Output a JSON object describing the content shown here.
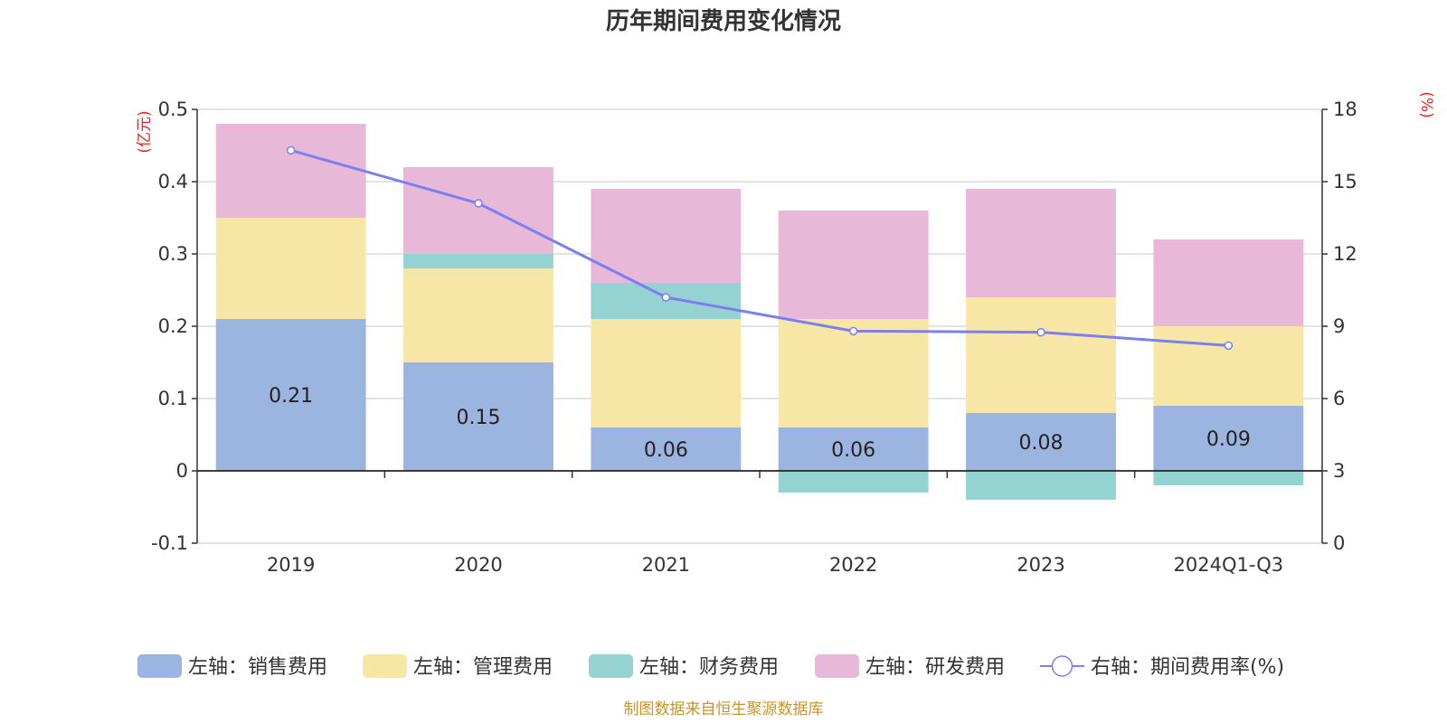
{
  "chart_data": {
    "type": "bar",
    "stacked": true,
    "title": "历年期间费用变化情况",
    "left_axis_unit": "(亿元)",
    "right_axis_unit": "(%)",
    "categories": [
      "2019",
      "2020",
      "2021",
      "2022",
      "2023",
      "2024Q1-Q3"
    ],
    "ylim_left": [
      -0.1,
      0.5
    ],
    "yticks_left": [
      "-0.1",
      "0",
      "0.1",
      "0.2",
      "0.3",
      "0.4",
      "0.5"
    ],
    "ylim_right": [
      0,
      18
    ],
    "yticks_right": [
      "0",
      "3",
      "6",
      "9",
      "12",
      "15",
      "18"
    ],
    "grid": true,
    "legend_position": "bottom",
    "series": [
      {
        "name": "左轴：销售费用",
        "axis": "left",
        "type": "bar",
        "color": "#9bb5e0",
        "values": [
          0.21,
          0.15,
          0.06,
          0.06,
          0.08,
          0.09
        ],
        "labels": [
          "0.21",
          "0.15",
          "0.06",
          "0.06",
          "0.08",
          "0.09"
        ]
      },
      {
        "name": "左轴：管理费用",
        "axis": "left",
        "type": "bar",
        "color": "#f7e6a6",
        "values": [
          0.14,
          0.13,
          0.15,
          0.15,
          0.16,
          0.11
        ]
      },
      {
        "name": "左轴：财务费用",
        "axis": "left",
        "type": "bar",
        "color": "#95d3d3",
        "values": [
          0.0,
          0.02,
          0.05,
          -0.03,
          -0.04,
          -0.02
        ]
      },
      {
        "name": "左轴：研发费用",
        "axis": "left",
        "type": "bar",
        "color": "#e8b8d9",
        "values": [
          0.13,
          0.12,
          0.13,
          0.15,
          0.15,
          0.12
        ]
      },
      {
        "name": "右轴：期间费用率(%)",
        "axis": "right",
        "type": "line",
        "color": "#7b7ff0",
        "values": [
          16.3,
          14.1,
          10.2,
          8.8,
          8.75,
          8.2
        ]
      }
    ]
  },
  "source_note": "制图数据来自恒生聚源数据库"
}
